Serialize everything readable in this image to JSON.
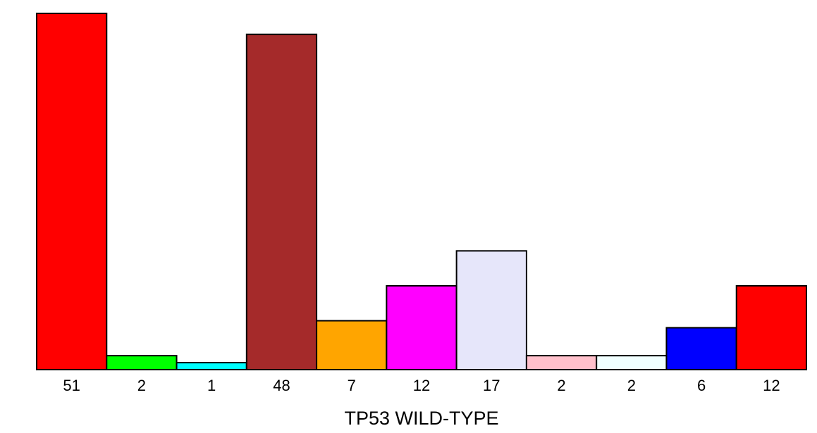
{
  "chart_data": {
    "type": "bar",
    "title": "",
    "xlabel": "TP53 WILD-TYPE",
    "ylabel": "",
    "categories": [
      "51",
      "2",
      "1",
      "48",
      "7",
      "12",
      "17",
      "2",
      "2",
      "6",
      "12"
    ],
    "values": [
      51,
      2,
      1,
      48,
      7,
      12,
      17,
      2,
      2,
      6,
      12
    ],
    "colors": [
      "#ff0000",
      "#00ff00",
      "#00ffff",
      "#a52a2a",
      "#ffa500",
      "#ff00ff",
      "#e6e6fa",
      "#ffc0cb",
      "#f0ffff",
      "#0000ff",
      "#ff0000"
    ],
    "ylim": [
      0,
      51
    ],
    "grid": false,
    "legend": "none"
  }
}
